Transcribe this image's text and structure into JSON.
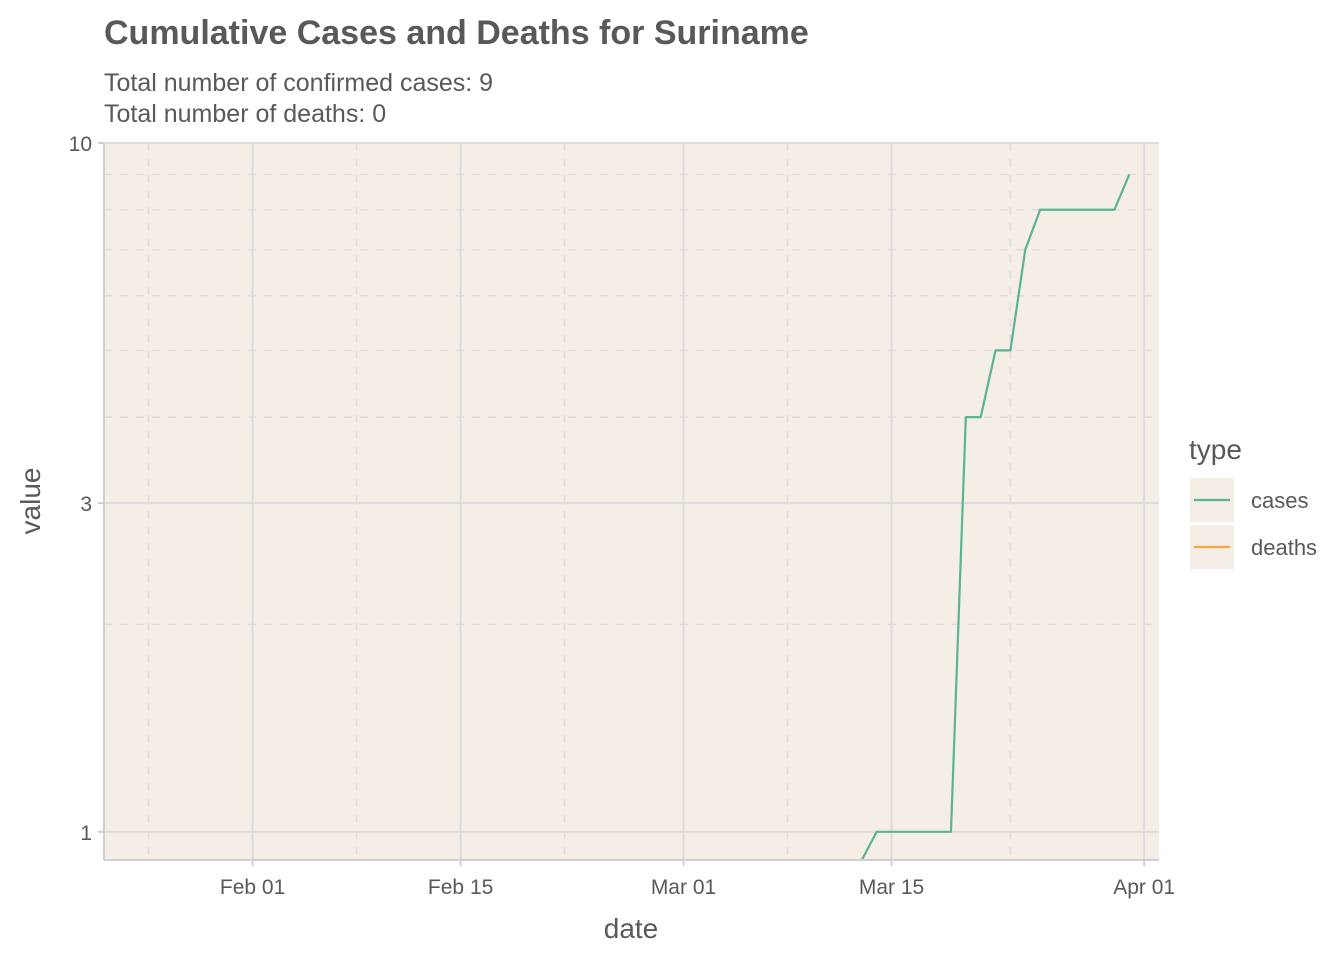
{
  "chart_data": {
    "type": "line",
    "title": "Cumulative Cases and Deaths for Suriname",
    "subtitle": [
      "Total number of confirmed cases: 9",
      "Total number of deaths: 0"
    ],
    "xlabel": "date",
    "ylabel": "value",
    "x_scale": "date",
    "y_scale": "log10",
    "xlim": [
      "2020-01-22",
      "2020-04-02"
    ],
    "ylim": [
      0.91,
      10
    ],
    "x_ticks": [
      {
        "date": "2020-02-01",
        "label": "Feb 01"
      },
      {
        "date": "2020-02-15",
        "label": "Feb 15"
      },
      {
        "date": "2020-03-01",
        "label": "Mar 01"
      },
      {
        "date": "2020-03-15",
        "label": "Mar 15"
      },
      {
        "date": "2020-04-01",
        "label": "Apr 01"
      }
    ],
    "x_minor_ticks": [
      "2020-01-25",
      "2020-02-08",
      "2020-02-22",
      "2020-03-08",
      "2020-03-23"
    ],
    "y_ticks": [
      {
        "value": 1,
        "label": "1"
      },
      {
        "value": 3,
        "label": "3"
      },
      {
        "value": 10,
        "label": "10"
      }
    ],
    "y_minor_ticks": [
      2,
      4,
      5,
      6,
      7,
      8,
      9
    ],
    "grid": true,
    "panel_background": "#f4eee7",
    "grid_color": "#dcdcdc",
    "legend": {
      "title": "type",
      "placement": "right",
      "entries": [
        {
          "name": "cases",
          "color": "#5ab393"
        },
        {
          "name": "deaths",
          "color": "#f9a53a"
        }
      ]
    },
    "series": [
      {
        "name": "cases",
        "color": "#5ab393",
        "points": [
          [
            "2020-03-13",
            0.91
          ],
          [
            "2020-03-14",
            1
          ],
          [
            "2020-03-15",
            1
          ],
          [
            "2020-03-16",
            1
          ],
          [
            "2020-03-17",
            1
          ],
          [
            "2020-03-18",
            1
          ],
          [
            "2020-03-19",
            1
          ],
          [
            "2020-03-20",
            4
          ],
          [
            "2020-03-21",
            4
          ],
          [
            "2020-03-22",
            5
          ],
          [
            "2020-03-23",
            5
          ],
          [
            "2020-03-24",
            7
          ],
          [
            "2020-03-25",
            8
          ],
          [
            "2020-03-26",
            8
          ],
          [
            "2020-03-27",
            8
          ],
          [
            "2020-03-28",
            8
          ],
          [
            "2020-03-29",
            8
          ],
          [
            "2020-03-30",
            8
          ],
          [
            "2020-03-31",
            9
          ]
        ]
      },
      {
        "name": "deaths",
        "color": "#f9a53a",
        "points": []
      }
    ]
  }
}
